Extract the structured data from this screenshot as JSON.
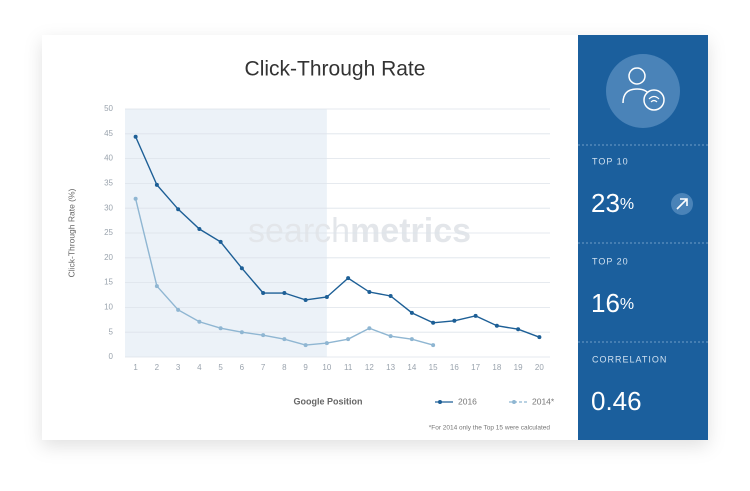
{
  "chart_data": {
    "type": "line",
    "title": "Click-Through Rate",
    "x_label": "Google Position",
    "y_label": "Click-Through Rate (%)",
    "x": [
      1,
      2,
      3,
      4,
      5,
      6,
      7,
      8,
      9,
      10,
      11,
      12,
      13,
      14,
      15,
      16,
      17,
      18,
      19,
      20
    ],
    "series": [
      {
        "name": "2016",
        "color": "#1d5f96",
        "values": [
          44.4,
          34.7,
          29.8,
          25.8,
          23.2,
          17.9,
          12.9,
          12.9,
          11.5,
          12.1,
          15.9,
          13.1,
          12.3,
          8.9,
          6.9,
          7.3,
          8.3,
          6.3,
          5.6,
          4.0
        ]
      },
      {
        "name": "2014*",
        "color": "#8fb6d2",
        "values": [
          31.9,
          14.3,
          9.5,
          7.1,
          5.8,
          5.0,
          4.4,
          3.6,
          2.4,
          2.8,
          3.6,
          5.8,
          4.2,
          3.6,
          2.4,
          null,
          null,
          null,
          null,
          null
        ]
      }
    ],
    "xlim": [
      0.5,
      20.5
    ],
    "xticks": [
      1,
      2,
      3,
      4,
      5,
      6,
      7,
      8,
      9,
      10,
      11,
      12,
      13,
      14,
      15,
      16,
      17,
      18,
      19,
      20
    ],
    "ylim": [
      0,
      50
    ],
    "yticks": [
      0,
      5,
      10,
      15,
      20,
      25,
      30,
      35,
      40,
      45,
      50
    ],
    "grid": true,
    "shaded_to": 10,
    "legend": "lower right",
    "watermark": [
      "search",
      "metrics"
    ],
    "footnote": "*For 2014 only the Top 15 were calculated"
  },
  "panel": {
    "stats": [
      {
        "label": "TOP 10",
        "value": "23",
        "unit": "%"
      },
      {
        "label": "TOP 20",
        "value": "16",
        "unit": "%"
      },
      {
        "label": "CORRELATION",
        "value": "0.46",
        "unit": ""
      }
    ]
  }
}
